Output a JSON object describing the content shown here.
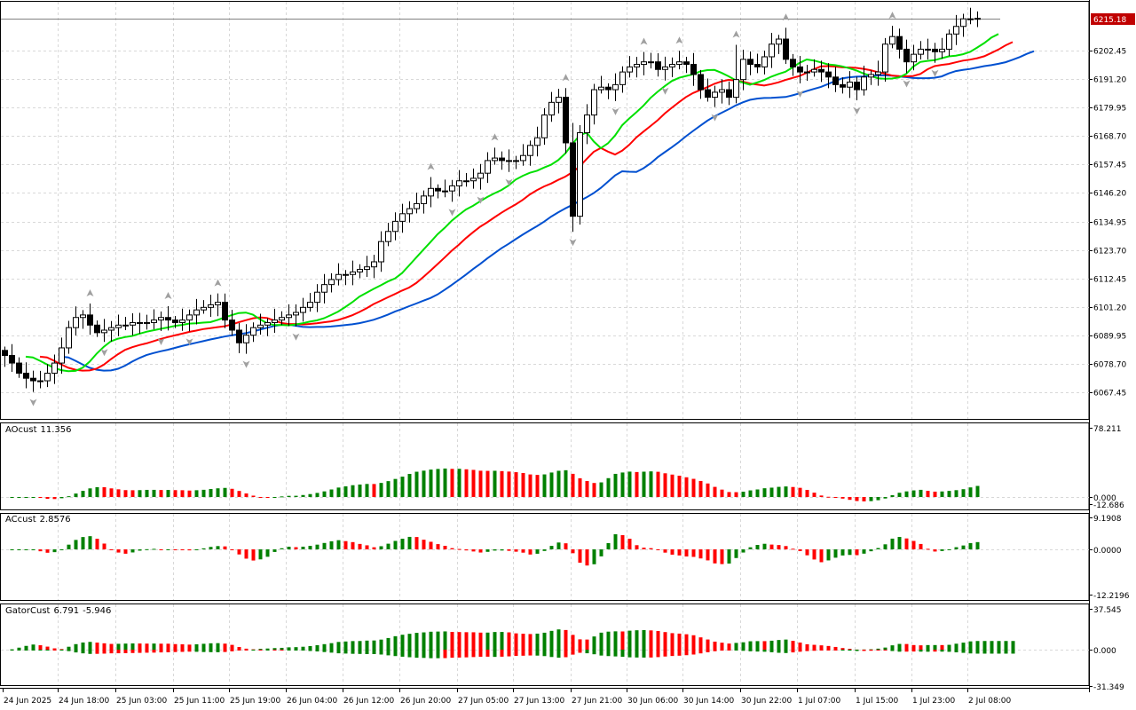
{
  "symbol_bid": "6215.18",
  "price_axis": [
    "6202.45",
    "6191.20",
    "6179.95",
    "6168.70",
    "6157.45",
    "6146.20",
    "6134.95",
    "6123.70",
    "6112.45",
    "6101.20",
    "6089.95",
    "6078.70",
    "6067.45"
  ],
  "time_axis": [
    "24 Jun 2025",
    "24 Jun 18:00",
    "25 Jun 03:00",
    "25 Jun 11:00",
    "25 Jun 19:00",
    "26 Jun 04:00",
    "26 Jun 12:00",
    "26 Jun 20:00",
    "27 Jun 05:00",
    "27 Jun 13:00",
    "27 Jun 21:00",
    "30 Jun 06:00",
    "30 Jun 14:00",
    "30 Jun 22:00",
    "1 Jul 07:00",
    "1 Jul 15:00",
    "1 Jul 23:00",
    "2 Jul 08:00"
  ],
  "indicators": {
    "ao": {
      "name": "AOcust",
      "value": "11.356",
      "axis": [
        "78.211",
        "0.000",
        "-12.686"
      ]
    },
    "ac": {
      "name": "ACcust",
      "value": "2.8576",
      "axis": [
        "9.1908",
        "0.0000",
        "-12.2196"
      ]
    },
    "gator": {
      "name": "GatorCust",
      "value1": "6.791",
      "value2": "-5.946",
      "axis": [
        "37.545",
        "0.000",
        "-31.349"
      ]
    }
  },
  "colors": {
    "up": "#008000",
    "down": "#ff0000",
    "jaw": "#0050d0",
    "teeth": "#ff0000",
    "lips": "#00e000",
    "bid_label": "#c00000"
  },
  "closes": [
    6082,
    6079,
    6075,
    6073,
    6072,
    6072,
    6075,
    6079,
    6085,
    6093,
    6097,
    6098,
    6094,
    6091,
    6092,
    6093,
    6094,
    6094,
    6095,
    6095,
    6095,
    6096,
    6097,
    6096,
    6095,
    6096,
    6098,
    6100,
    6101,
    6102,
    6103,
    6096,
    6092,
    6087,
    6090,
    6093,
    6094,
    6095,
    6096,
    6097,
    6098,
    6099,
    6101,
    6103,
    6107,
    6110,
    6112,
    6114,
    6114,
    6115,
    6116,
    6117,
    6119,
    6127,
    6131,
    6135,
    6138,
    6140,
    6142,
    6145,
    6148,
    6147,
    6147,
    6149,
    6151,
    6151,
    6152,
    6154,
    6159,
    6160,
    6159,
    6159,
    6159,
    6161,
    6165,
    6168,
    6177,
    6182,
    6184,
    6166,
    6137,
    6170,
    6177,
    6187,
    6188,
    6187,
    6189,
    6194,
    6196,
    6197,
    6198,
    6198,
    6195,
    6196,
    6197,
    6198,
    6197,
    6193,
    6187,
    6184,
    6186,
    6187,
    6184,
    6191,
    6199,
    6197,
    6196,
    6200,
    6205,
    6207,
    6199,
    6196,
    6194,
    6194,
    6195,
    6194,
    6192,
    6189,
    6188,
    6190,
    6187,
    6192,
    6193,
    6194,
    6205,
    6208,
    6203,
    6198,
    6201,
    6203,
    6203,
    6202,
    6203,
    6209,
    6212,
    6215,
    6215,
    6215.18
  ]
}
